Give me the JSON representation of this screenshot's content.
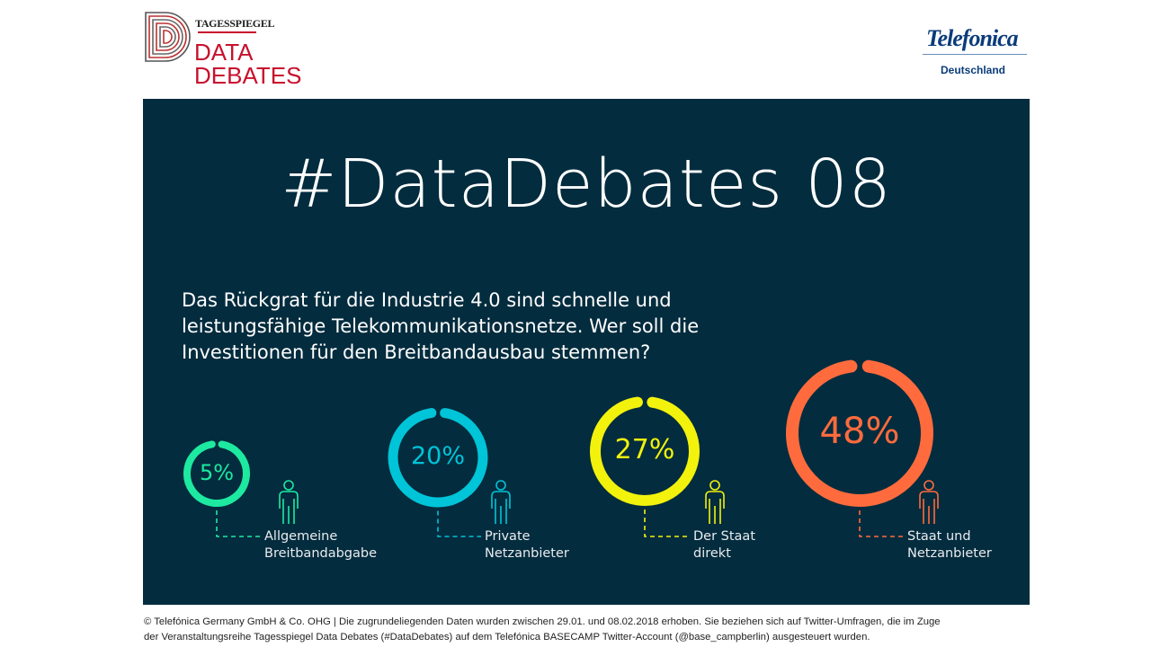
{
  "header": {
    "logo_left": {
      "publisher": "TAGESSPIEGEL",
      "line1": "DATA",
      "line2": "DEBATES"
    },
    "logo_right": {
      "brand": "Telefonica",
      "sub": "Deutschland"
    }
  },
  "panel": {
    "title": "#DataDebates 08",
    "question": "Das Rückgrat für die Industrie 4.0 sind schnelle und leistungsfähige Telekommunikationsnetze. Wer soll die Investitionen für den Breitbandausbau stemmen?",
    "background": "#032c3e"
  },
  "chart_data": {
    "type": "pie",
    "categories": [
      "Allgemeine Breitbandabgabe",
      "Private Netzanbieter",
      "Der Staat direkt",
      "Staat und Netzanbieter"
    ],
    "values": [
      5,
      20,
      27,
      48
    ],
    "unit": "%",
    "items": [
      {
        "label_line1": "Allgemeine",
        "label_line2": "Breitbandabgabe",
        "value": 5,
        "display": "5%",
        "color": "#1de9a0"
      },
      {
        "label_line1": "Private",
        "label_line2": "Netzanbieter",
        "value": 20,
        "display": "20%",
        "color": "#00c4d8"
      },
      {
        "label_line1": "Der Staat",
        "label_line2": "direkt",
        "value": 27,
        "display": "27%",
        "color": "#f2f20c"
      },
      {
        "label_line1": "Staat und",
        "label_line2": "Netzanbieter",
        "value": 48,
        "display": "48%",
        "color": "#ff6b3d"
      }
    ]
  },
  "footer": {
    "line1": "© Telefónica Germany GmbH & Co. OHG  |  Die zugrundeliegenden Daten wurden zwischen 29.01. und 08.02.2018 erhoben. Sie beziehen sich auf Twitter-Umfragen, die im Zuge",
    "line2": "der Veranstaltungsreihe Tagesspiegel Data Debates (#DataDebates) auf dem Telefónica BASECAMP Twitter-Account (@base_campberlin) ausgesteuert wurden."
  }
}
